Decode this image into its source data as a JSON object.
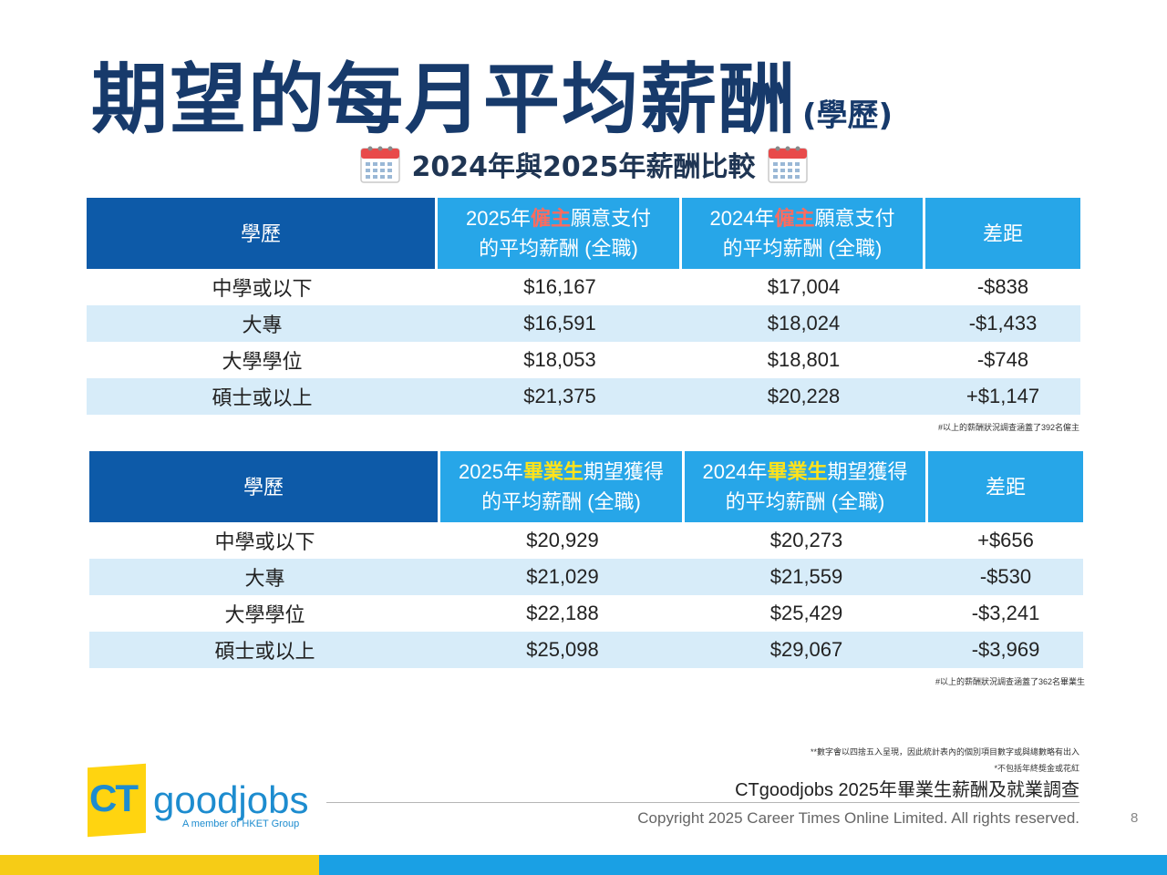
{
  "title": {
    "main": "期望的每月平均薪酬",
    "sub": "(學歷)"
  },
  "subtitle": "2024年與2025年薪酬比較",
  "employer_table": {
    "headers": {
      "education": "學歷",
      "col2025_prefix": "2025年",
      "col2025_keyword": "僱主",
      "col2025_suffix": "願意支付",
      "col2025_line2": "的平均薪酬 (全職)",
      "col2024_prefix": "2024年",
      "col2024_keyword": "僱主",
      "col2024_suffix": "願意支付",
      "col2024_line2": "的平均薪酬 (全職)",
      "difference": "差距"
    },
    "rows": [
      {
        "education": "中學或以下",
        "y2025": "$16,167",
        "y2024": "$17,004",
        "diff": "-$838"
      },
      {
        "education": "大專",
        "y2025": "$16,591",
        "y2024": "$18,024",
        "diff": "-$1,433"
      },
      {
        "education": "大學學位",
        "y2025": "$18,053",
        "y2024": "$18,801",
        "diff": "-$748"
      },
      {
        "education": "碩士或以上",
        "y2025": "$21,375",
        "y2024": "$20,228",
        "diff": "+$1,147"
      }
    ],
    "note": "#以上的薪酬狀況調查涵蓋了392名僱主"
  },
  "graduate_table": {
    "headers": {
      "education": "學歷",
      "col2025_prefix": "2025年",
      "col2025_keyword": "畢業生",
      "col2025_suffix": "期望獲得",
      "col2025_line2": "的平均薪酬 (全職)",
      "col2024_prefix": "2024年",
      "col2024_keyword": "畢業生",
      "col2024_suffix": "期望獲得",
      "col2024_line2": "的平均薪酬 (全職)",
      "difference": "差距"
    },
    "rows": [
      {
        "education": "中學或以下",
        "y2025": "$20,929",
        "y2024": "$20,273",
        "diff": "+$656"
      },
      {
        "education": "大專",
        "y2025": "$21,029",
        "y2024": "$21,559",
        "diff": "-$530"
      },
      {
        "education": "大學學位",
        "y2025": "$22,188",
        "y2024": "$25,429",
        "diff": "-$3,241"
      },
      {
        "education": "碩士或以上",
        "y2025": "$25,098",
        "y2024": "$29,067",
        "diff": "-$3,969"
      }
    ],
    "note": "#以上的薪酬狀況調查涵蓋了362名畢業生"
  },
  "footnotes": [
    "**數字會以四捨五入呈現，因此統計表內的個別項目數字或與總數略有出入",
    "*不包括年終獎金或花紅"
  ],
  "survey_title": "CTgoodjobs 2025年畢業生薪酬及就業調查",
  "copyright": "Copyright 2025 Career Times Online Limited. All rights reserved.",
  "page_number": "8",
  "logo": {
    "ct": "CT",
    "goodjobs": "goodjobs",
    "member": "A member of HKET Group"
  },
  "colors": {
    "title": "#173a6b",
    "header_dark": "#0d5aa8",
    "header_light": "#27a6e8",
    "row_alt": "#d7ecf9",
    "negative": "#d42a2a",
    "positive": "#2a9a36",
    "keyword_employer": "#ff6b5e",
    "keyword_graduate": "#ffe21a"
  },
  "icons": [
    "calendar-icon",
    "calendar-icon"
  ]
}
